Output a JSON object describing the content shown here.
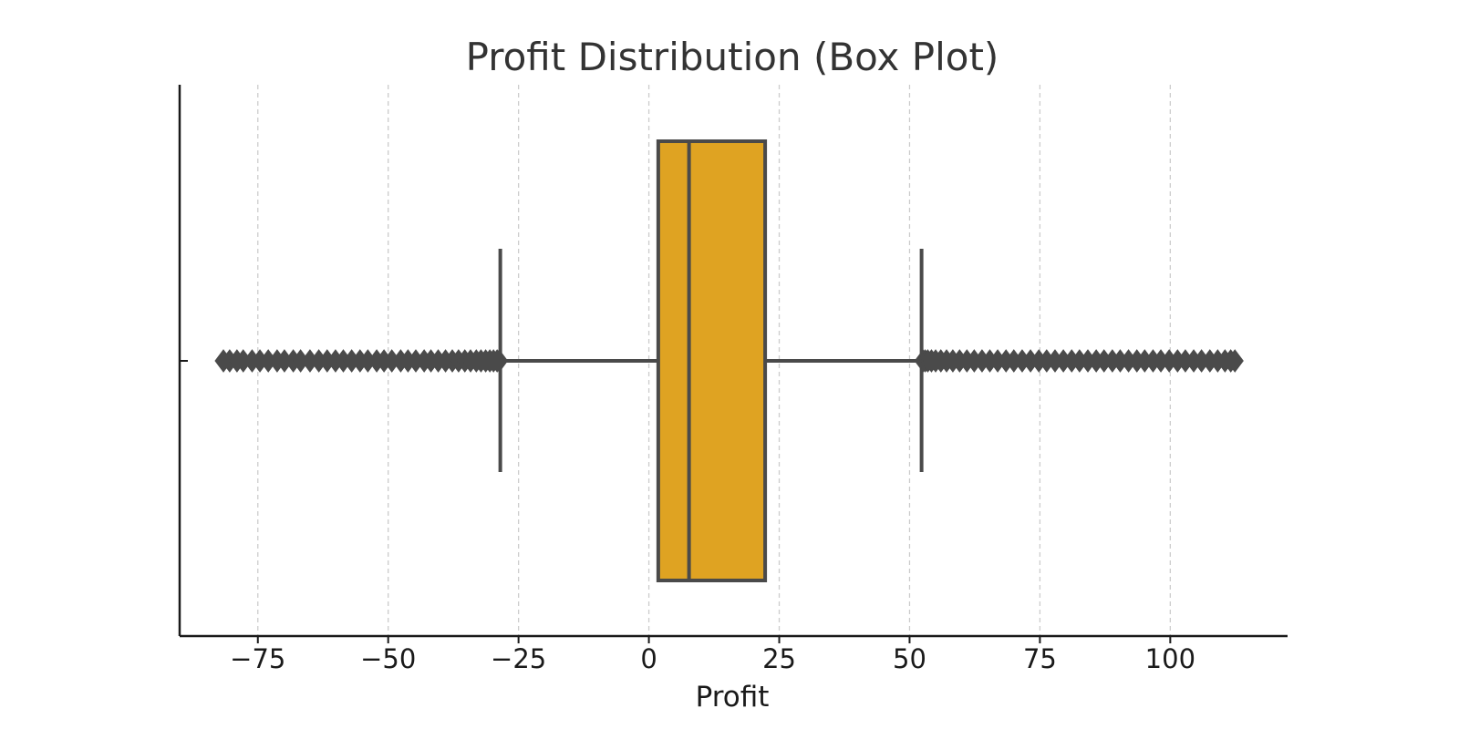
{
  "chart_data": {
    "type": "box",
    "title": "Profit Distribution (Box Plot)",
    "xlabel": "Profit",
    "ylabel": "",
    "orientation": "horizontal",
    "xlim": [
      -90,
      122.5
    ],
    "xticks": [
      -75,
      -50,
      -25,
      0,
      25,
      50,
      75,
      100
    ],
    "xtick_labels": [
      "−75",
      "−50",
      "−25",
      "0",
      "25",
      "50",
      "75",
      "100"
    ],
    "grid": {
      "x": true,
      "y": false,
      "style": "dashed"
    },
    "colors": {
      "box_fill": "#DFA322",
      "lines": "#4a4a4a",
      "grid": "#cccccc",
      "axis": "#1a1a1a"
    },
    "box": {
      "whisker_low": -28.5,
      "q1": 1.8,
      "median": 7.7,
      "q3": 22.3,
      "whisker_high": 52.3
    },
    "outliers_low": [
      -81.6,
      -80.4,
      -79.0,
      -77.8,
      -76.1,
      -74.6,
      -73.0,
      -71.3,
      -69.9,
      -68.2,
      -66.8,
      -65.0,
      -63.3,
      -61.7,
      -60.1,
      -58.6,
      -57.0,
      -55.4,
      -53.9,
      -52.2,
      -50.8,
      -49.3,
      -47.6,
      -46.2,
      -44.7,
      -43.1,
      -41.8,
      -40.4,
      -39.0,
      -37.7,
      -36.5,
      -35.3,
      -34.2,
      -33.1,
      -32.2,
      -31.3,
      -30.5,
      -29.8,
      -29.1,
      -28.7
    ],
    "outliers_high": [
      52.6,
      53.0,
      53.5,
      54.2,
      55.0,
      56.0,
      57.1,
      58.3,
      59.6,
      61.0,
      62.4,
      63.9,
      65.4,
      66.9,
      68.5,
      70.0,
      71.6,
      73.2,
      74.8,
      76.3,
      77.9,
      79.5,
      81.1,
      82.6,
      84.2,
      85.8,
      87.3,
      88.9,
      90.4,
      92.0,
      93.6,
      95.1,
      96.7,
      98.2,
      99.8,
      101.4,
      102.9,
      104.5,
      106.0,
      107.6,
      109.1,
      110.5,
      111.6,
      112.4
    ]
  }
}
